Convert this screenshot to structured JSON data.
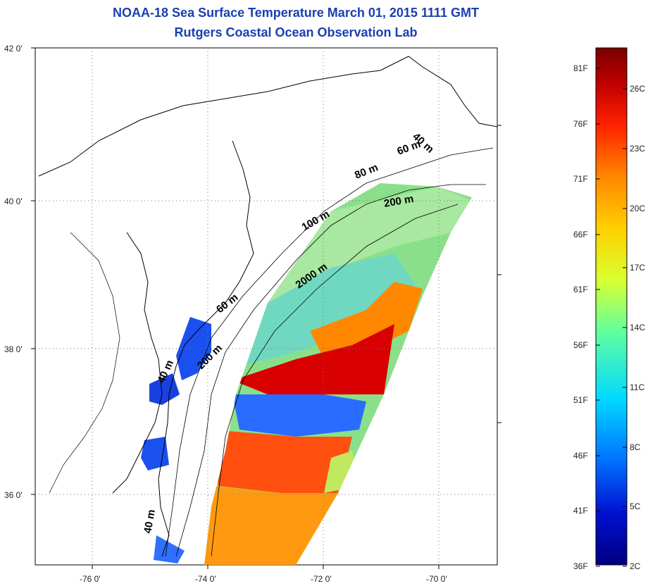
{
  "title_line1": "NOAA-18 Sea Surface Temperature March 01, 2015 1111 GMT",
  "title_line2": "Rutgers Coastal Ocean Observation Lab",
  "lat_labels": [
    "42 0'",
    "40 0'",
    "38 0'",
    "36 0'"
  ],
  "lon_labels": [
    "-76 0'",
    "-74 0'",
    "-72 0'",
    "-70 0'"
  ],
  "depth_labels": [
    "40 m",
    "60 m",
    "80 m",
    "200 m",
    "100 m",
    "2000 m",
    "60 m",
    "200 m",
    "40 m",
    "40 m"
  ],
  "colorbar": {
    "f_labels": [
      "81F",
      "76F",
      "71F",
      "66F",
      "61F",
      "56F",
      "51F",
      "46F",
      "41F",
      "36F"
    ],
    "c_labels": [
      "26C",
      "23C",
      "20C",
      "17C",
      "14C",
      "11C",
      "8C",
      "5C",
      "2C"
    ],
    "colors": [
      "#7a0000",
      "#c00000",
      "#ff2200",
      "#ff8800",
      "#ffd000",
      "#d8ff30",
      "#60ffa0",
      "#00d8ff",
      "#0070ff",
      "#0010d0",
      "#000080"
    ]
  }
}
